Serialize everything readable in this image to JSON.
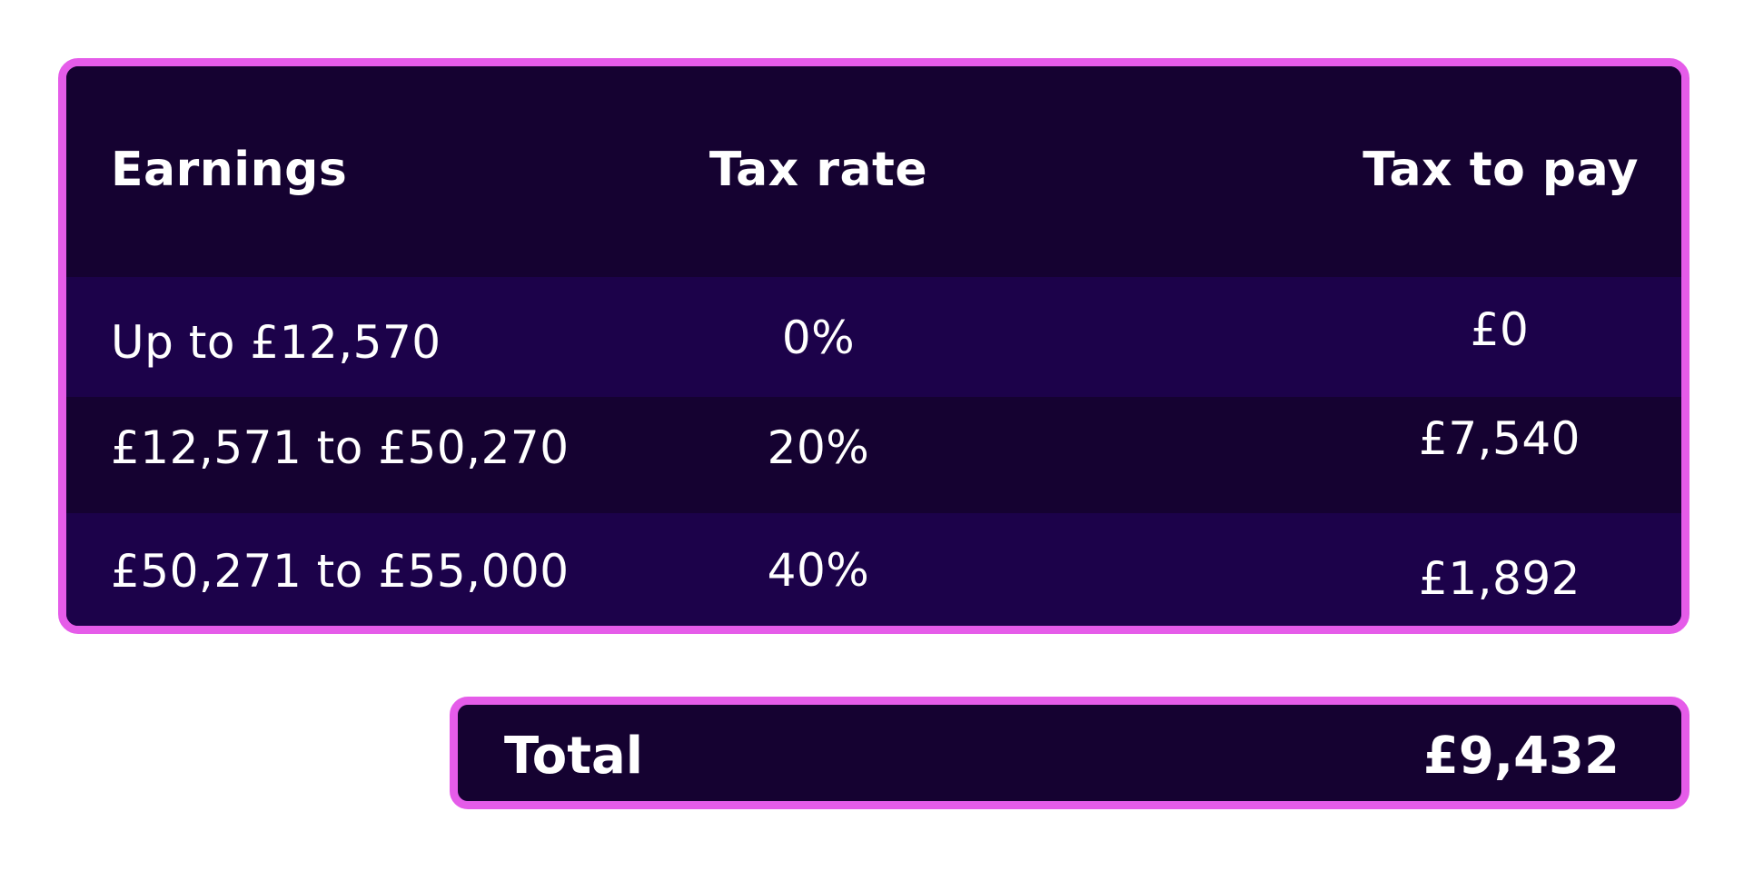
{
  "table": {
    "headers": {
      "earnings": "Earnings",
      "tax_rate": "Tax rate",
      "tax_to_pay": "Tax to pay"
    },
    "rows": [
      {
        "earnings": "Up to £12,570",
        "tax_rate": "0%",
        "tax_to_pay": "£0"
      },
      {
        "earnings": "£12,571 to £50,270",
        "tax_rate": "20%",
        "tax_to_pay": "£7,540"
      },
      {
        "earnings": "£50,271 to £55,000",
        "tax_rate": "40%",
        "tax_to_pay": "£1,892"
      }
    ]
  },
  "total": {
    "label": "Total",
    "value": "£9,432"
  },
  "colors": {
    "accent_border": "#e55ce9",
    "panel_dark": "#150231",
    "panel_band": "#1c024a",
    "text": "#ffffff",
    "background": "#ffffff"
  }
}
